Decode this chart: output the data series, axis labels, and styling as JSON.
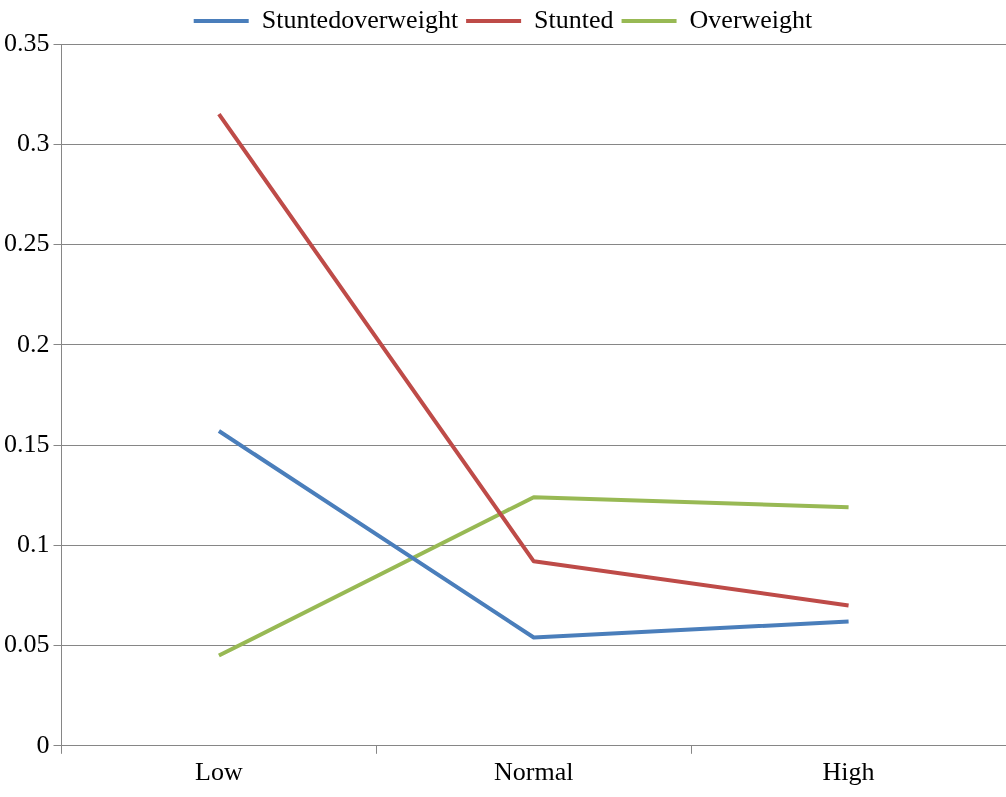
{
  "chart_data": {
    "type": "line",
    "categories": [
      "Low",
      "Normal",
      "High"
    ],
    "series": [
      {
        "name": "Stuntedoverweight",
        "color": "#4a7ebb",
        "values": [
          0.157,
          0.054,
          0.062
        ]
      },
      {
        "name": "Stunted",
        "color": "#be4b48",
        "values": [
          0.315,
          0.092,
          0.07
        ]
      },
      {
        "name": "Overweight",
        "color": "#98b954",
        "values": [
          0.045,
          0.124,
          0.119
        ]
      }
    ],
    "ylim": [
      0,
      0.35
    ],
    "yticks": [
      0,
      0.05,
      0.1,
      0.15,
      0.2,
      0.25,
      0.3,
      0.35
    ],
    "grid": "y",
    "legend": "top",
    "marker": "none",
    "line_style": "solid"
  }
}
